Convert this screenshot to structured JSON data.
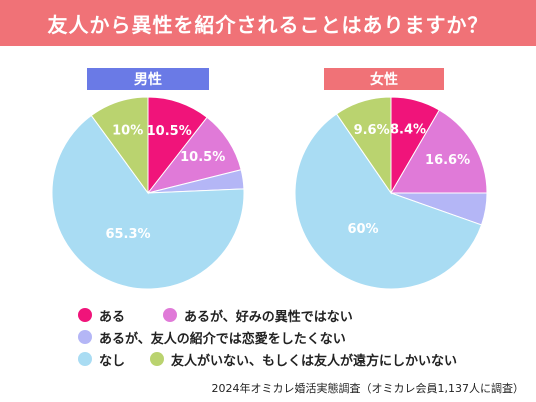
{
  "header": {
    "title": "友人から異性を紹介されることはありますか？"
  },
  "legend": {
    "items": [
      {
        "label": "ある",
        "color": "#f0147a"
      },
      {
        "label": "あるが、好みの異性ではない",
        "color": "#e07ad8"
      },
      {
        "label": "あるが、友人の紹介では恋愛をしたくない",
        "color": "#b4b6f6"
      },
      {
        "label": "なし",
        "color": "#a9dcf3"
      },
      {
        "label": "友人がいない、もしくは友人が遠方にしかいない",
        "color": "#bad36f"
      }
    ]
  },
  "footer": {
    "note": "2024年オミカレ婚活実態調査（オミカレ会員1,137人に調査）"
  },
  "chart_data": [
    {
      "type": "pie",
      "title": "男性",
      "title_color": "#6a7ae6",
      "categories": [
        "ある",
        "あるが、好みの異性ではない",
        "あるが、友人の紹介では恋愛をしたくない",
        "なし",
        "友人がいない、もしくは友人が遠方にしかいない"
      ],
      "values": [
        10.5,
        10.5,
        3.2,
        65.3,
        10
      ],
      "labels": [
        "10.5%",
        "10.5%",
        "",
        "65.3%",
        "10%"
      ],
      "colors": [
        "#f0147a",
        "#e07ad8",
        "#b4b6f6",
        "#a9dcf3",
        "#bad36f"
      ]
    },
    {
      "type": "pie",
      "title": "女性",
      "title_color": "#f07277",
      "categories": [
        "ある",
        "あるが、好みの異性ではない",
        "あるが、友人の紹介では恋愛をしたくない",
        "なし",
        "友人がいない、もしくは友人が遠方にしかいない"
      ],
      "values": [
        8.4,
        16.6,
        5.4,
        60,
        9.6
      ],
      "labels": [
        "8.4%",
        "16.6%",
        "",
        "60%",
        "9.6%"
      ],
      "colors": [
        "#f0147a",
        "#e07ad8",
        "#b4b6f6",
        "#a9dcf3",
        "#bad36f"
      ]
    }
  ]
}
